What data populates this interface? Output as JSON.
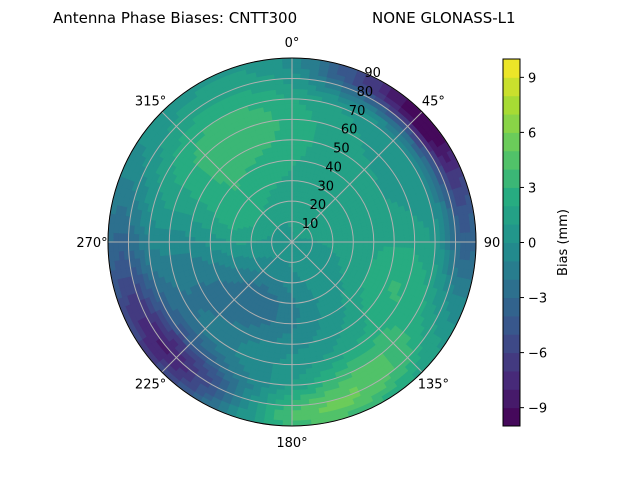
{
  "chart_data": {
    "type": "polar_contour",
    "title": "Antenna Phase Biases: CNTT300",
    "subtitle": "NONE GLONASS-L1",
    "angular_ticks": [
      {
        "deg": 0,
        "label": "0°"
      },
      {
        "deg": 45,
        "label": "45°"
      },
      {
        "deg": 90,
        "label": "90"
      },
      {
        "deg": 135,
        "label": "135°"
      },
      {
        "deg": 180,
        "label": "180°"
      },
      {
        "deg": 225,
        "label": "225°"
      },
      {
        "deg": 270,
        "label": "270°"
      },
      {
        "deg": 315,
        "label": "315°"
      }
    ],
    "radial_ticks": [
      10,
      20,
      30,
      40,
      50,
      60,
      70,
      80,
      90
    ],
    "radial_range": [
      0,
      90
    ],
    "angular_direction": "clockwise",
    "zero_location": "top",
    "grid": true,
    "colorbar": {
      "label": "Bias (mm)",
      "range": [
        -10,
        10
      ],
      "ticks": [
        -9,
        -6,
        -3,
        0,
        3,
        6,
        9
      ],
      "tick_labels": [
        "−9",
        "−6",
        "−3",
        "0",
        "3",
        "6",
        "9"
      ],
      "levels": 20,
      "colormap": "viridis"
    },
    "field_features": [
      {
        "az": 330,
        "zen": 60,
        "value": 3.2,
        "spread_az": 45,
        "spread_zen": 22
      },
      {
        "az": 40,
        "zen": 25,
        "value": 1.5,
        "spread_az": 60,
        "spread_zen": 25
      },
      {
        "az": 45,
        "zen": 88,
        "value": -7.5,
        "spread_az": 20,
        "spread_zen": 10
      },
      {
        "az": 65,
        "zen": 85,
        "value": -5.0,
        "spread_az": 25,
        "spread_zen": 10
      },
      {
        "az": 20,
        "zen": 86,
        "value": -4.0,
        "spread_az": 18,
        "spread_zen": 10
      },
      {
        "az": 255,
        "zen": 85,
        "value": -4.0,
        "spread_az": 40,
        "spread_zen": 12
      },
      {
        "az": 225,
        "zen": 80,
        "value": -6.0,
        "spread_az": 28,
        "spread_zen": 14
      },
      {
        "az": 210,
        "zen": 35,
        "value": -3.0,
        "spread_az": 40,
        "spread_zen": 18
      },
      {
        "az": 250,
        "zen": 55,
        "value": -2.0,
        "spread_az": 35,
        "spread_zen": 20
      },
      {
        "az": 150,
        "zen": 75,
        "value": 3.5,
        "spread_az": 25,
        "spread_zen": 14
      },
      {
        "az": 175,
        "zen": 85,
        "value": 3.8,
        "spread_az": 25,
        "spread_zen": 10
      },
      {
        "az": 115,
        "zen": 55,
        "value": 2.5,
        "spread_az": 30,
        "spread_zen": 20
      },
      {
        "az": 95,
        "zen": 85,
        "value": -2.5,
        "spread_az": 20,
        "spread_zen": 10
      },
      {
        "az": 300,
        "zen": 30,
        "value": 2.0,
        "spread_az": 40,
        "spread_zen": 18
      }
    ]
  }
}
